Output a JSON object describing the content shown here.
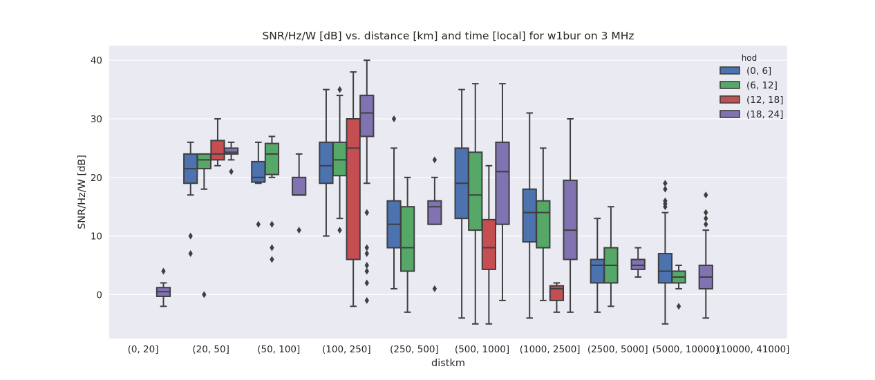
{
  "chart_data": {
    "type": "box",
    "title": "SNR/Hz/W [dB] vs. distance [km] and time [local] for w1bur on 3 MHz",
    "xlabel": "distkm",
    "ylabel": "SNR/Hz/W [dB]",
    "ylim": [
      -7.5,
      42.5
    ],
    "yticks": [
      0,
      10,
      20,
      30,
      40
    ],
    "categories": [
      "(0, 20]",
      "(20, 50]",
      "(50, 100]",
      "(100, 250]",
      "(250, 500]",
      "(500, 1000]",
      "(1000, 2500]",
      "(2500, 5000]",
      "(5000, 10000]",
      "(10000, 41000]"
    ],
    "legend": {
      "title": "hod",
      "position": "top-right",
      "entries": [
        "(0, 6]",
        "(6, 12]",
        "(12, 18]",
        "(18, 24]"
      ]
    },
    "colors": [
      "#4c72b0",
      "#55a868",
      "#c44e52",
      "#8172b2"
    ],
    "series": [
      {
        "name": "(0, 6]",
        "boxes": [
          null,
          {
            "q1": 19,
            "median": 21.5,
            "q3": 24,
            "whislo": 17,
            "whishi": 26,
            "fliers": [
              10,
              7
            ]
          },
          {
            "q1": 19.2,
            "median": 20,
            "q3": 22.7,
            "whislo": 19,
            "whishi": 26,
            "fliers": [
              12
            ]
          },
          {
            "q1": 19,
            "median": 22,
            "q3": 26,
            "whislo": 10,
            "whishi": 35,
            "fliers": []
          },
          {
            "q1": 8,
            "median": 12,
            "q3": 16,
            "whislo": 1,
            "whishi": 25,
            "fliers": [
              30
            ]
          },
          {
            "q1": 13,
            "median": 19,
            "q3": 25,
            "whislo": -4,
            "whishi": 35,
            "fliers": []
          },
          {
            "q1": 9,
            "median": 14,
            "q3": 18,
            "whislo": -4,
            "whishi": 31,
            "fliers": []
          },
          {
            "q1": 2,
            "median": 5,
            "q3": 6,
            "whislo": -3,
            "whishi": 13,
            "fliers": []
          },
          {
            "q1": 2,
            "median": 4,
            "q3": 7,
            "whislo": -5,
            "whishi": 14,
            "fliers": [
              15,
              15.5,
              16,
              18,
              19
            ]
          },
          null
        ]
      },
      {
        "name": "(6, 12]",
        "boxes": [
          null,
          {
            "q1": 21.5,
            "median": 23,
            "q3": 24,
            "whislo": 18,
            "whishi": 24,
            "fliers": [
              0
            ]
          },
          {
            "q1": 20.5,
            "median": 24,
            "q3": 25.8,
            "whislo": 20,
            "whishi": 27,
            "fliers": [
              12,
              8,
              6
            ]
          },
          {
            "q1": 20.3,
            "median": 23,
            "q3": 26,
            "whislo": 13,
            "whishi": 34,
            "fliers": [
              35,
              11
            ]
          },
          {
            "q1": 4,
            "median": 8,
            "q3": 15,
            "whislo": -3,
            "whishi": 20,
            "fliers": []
          },
          {
            "q1": 11,
            "median": 17,
            "q3": 24.3,
            "whislo": -5,
            "whishi": 36,
            "fliers": []
          },
          {
            "q1": 8,
            "median": 14,
            "q3": 16,
            "whislo": -1,
            "whishi": 25,
            "fliers": []
          },
          {
            "q1": 2,
            "median": 5,
            "q3": 8,
            "whislo": -2,
            "whishi": 15,
            "fliers": []
          },
          {
            "q1": 2,
            "median": 3,
            "q3": 4,
            "whislo": 1,
            "whishi": 5,
            "fliers": [
              -2
            ]
          },
          null
        ]
      },
      {
        "name": "(12, 18]",
        "boxes": [
          null,
          {
            "q1": 23,
            "median": 24,
            "q3": 26.3,
            "whislo": 22,
            "whishi": 30,
            "fliers": []
          },
          null,
          {
            "q1": 6,
            "median": 25,
            "q3": 30,
            "whislo": -2,
            "whishi": 38,
            "fliers": []
          },
          null,
          {
            "q1": 4.3,
            "median": 8,
            "q3": 12.8,
            "whislo": -5,
            "whishi": 22,
            "fliers": []
          },
          {
            "q1": -1,
            "median": 1,
            "q3": 1.5,
            "whislo": -3,
            "whishi": 2,
            "fliers": []
          },
          null,
          null,
          null
        ]
      },
      {
        "name": "(18, 24]",
        "boxes": [
          {
            "q1": -0.3,
            "median": 0.5,
            "q3": 1.2,
            "whislo": -2,
            "whishi": 2,
            "fliers": [
              4
            ]
          },
          {
            "q1": 24,
            "median": 24.3,
            "q3": 25,
            "whislo": 23,
            "whishi": 26,
            "fliers": [
              21
            ]
          },
          {
            "q1": 17,
            "median": 17,
            "q3": 20,
            "whislo": 17,
            "whishi": 24,
            "fliers": [
              11
            ]
          },
          {
            "q1": 27,
            "median": 31,
            "q3": 34,
            "whislo": 19,
            "whishi": 40,
            "fliers": [
              14,
              8,
              7,
              5,
              4,
              2,
              -1
            ]
          },
          {
            "q1": 12,
            "median": 15,
            "q3": 16,
            "whislo": 12,
            "whishi": 20,
            "fliers": [
              23,
              1
            ]
          },
          {
            "q1": 12,
            "median": 21,
            "q3": 26,
            "whislo": -1,
            "whishi": 36,
            "fliers": []
          },
          {
            "q1": 6,
            "median": 11,
            "q3": 19.5,
            "whislo": -3,
            "whishi": 30,
            "fliers": []
          },
          {
            "q1": 4.3,
            "median": 5,
            "q3": 6,
            "whislo": 3,
            "whishi": 8,
            "fliers": []
          },
          {
            "q1": 1,
            "median": 3,
            "q3": 5,
            "whislo": -4,
            "whishi": 11,
            "fliers": [
              12,
              13,
              14,
              17
            ]
          },
          null
        ]
      }
    ]
  }
}
